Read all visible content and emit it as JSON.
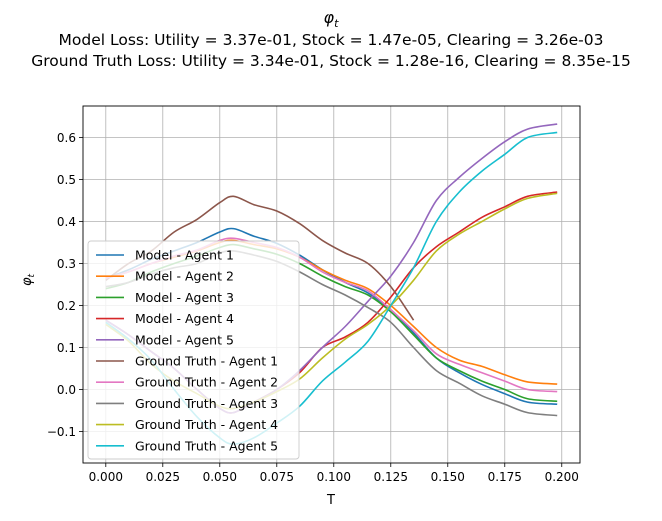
{
  "chart_data": {
    "type": "line",
    "title_symbol": "φ",
    "title_subscript": "t",
    "subtitle_lines": [
      "Model Loss: Utility = 3.37e-01, Stock = 1.47e-05, Clearing = 3.26e-03",
      "Ground Truth Loss: Utility = 3.34e-01, Stock = 1.28e-16, Clearing = 8.35e-15"
    ],
    "xlabel": "T",
    "ylabel_symbol": "φ",
    "ylabel_subscript": "t",
    "xlim": [
      -0.01,
      0.208
    ],
    "ylim": [
      -0.175,
      0.675
    ],
    "x_ticks": [
      0.0,
      0.025,
      0.05,
      0.075,
      0.1,
      0.125,
      0.15,
      0.175,
      0.2
    ],
    "x_tick_labels": [
      "0.000",
      "0.025",
      "0.050",
      "0.075",
      "0.100",
      "0.125",
      "0.150",
      "0.175",
      "0.200"
    ],
    "y_ticks": [
      -0.1,
      0.0,
      0.1,
      0.2,
      0.3,
      0.4,
      0.5,
      0.6
    ],
    "y_tick_labels": [
      "−0.1",
      "0.0",
      "0.1",
      "0.2",
      "0.3",
      "0.4",
      "0.5",
      "0.6"
    ],
    "grid": true,
    "legend_position": "lower-left",
    "series": [
      {
        "name": "Model - Agent 1",
        "color": "#1f77b4",
        "x": [
          0,
          0.01,
          0.02,
          0.03,
          0.04,
          0.05,
          0.056,
          0.065,
          0.075,
          0.085,
          0.095,
          0.105,
          0.115,
          0.125,
          0.135,
          0.145,
          0.155,
          0.165,
          0.175,
          0.185,
          0.198
        ],
        "y": [
          0.265,
          0.285,
          0.31,
          0.33,
          0.35,
          0.375,
          0.383,
          0.365,
          0.348,
          0.32,
          0.285,
          0.255,
          0.23,
          0.19,
          0.135,
          0.075,
          0.04,
          0.012,
          -0.01,
          -0.03,
          -0.035
        ]
      },
      {
        "name": "Model - Agent 2",
        "color": "#ff7f0e",
        "x": [
          0,
          0.01,
          0.02,
          0.03,
          0.04,
          0.05,
          0.056,
          0.065,
          0.075,
          0.085,
          0.095,
          0.105,
          0.115,
          0.125,
          0.135,
          0.145,
          0.155,
          0.165,
          0.175,
          0.185,
          0.198
        ],
        "y": [
          0.265,
          0.28,
          0.3,
          0.315,
          0.33,
          0.35,
          0.355,
          0.345,
          0.335,
          0.315,
          0.285,
          0.26,
          0.24,
          0.2,
          0.15,
          0.1,
          0.07,
          0.055,
          0.035,
          0.018,
          0.013
        ]
      },
      {
        "name": "Model - Agent 3",
        "color": "#2ca02c",
        "x": [
          0,
          0.01,
          0.02,
          0.03,
          0.04,
          0.05,
          0.056,
          0.065,
          0.075,
          0.085,
          0.095,
          0.105,
          0.115,
          0.125,
          0.135,
          0.145,
          0.155,
          0.165,
          0.175,
          0.185,
          0.198
        ],
        "y": [
          0.24,
          0.255,
          0.28,
          0.3,
          0.318,
          0.338,
          0.345,
          0.335,
          0.322,
          0.3,
          0.27,
          0.245,
          0.225,
          0.185,
          0.13,
          0.075,
          0.045,
          0.02,
          0.0,
          -0.022,
          -0.028
        ]
      },
      {
        "name": "Model - Agent 4",
        "color": "#d62728",
        "x": [
          0,
          0.01,
          0.02,
          0.03,
          0.04,
          0.05,
          0.056,
          0.065,
          0.075,
          0.085,
          0.095,
          0.105,
          0.115,
          0.125,
          0.135,
          0.145,
          0.155,
          0.165,
          0.175,
          0.185,
          0.198
        ],
        "y": [
          0.165,
          0.13,
          0.09,
          0.05,
          0.0,
          -0.045,
          -0.055,
          -0.03,
          0.0,
          0.04,
          0.1,
          0.125,
          0.16,
          0.22,
          0.29,
          0.34,
          0.375,
          0.41,
          0.435,
          0.46,
          0.47
        ]
      },
      {
        "name": "Model - Agent 5",
        "color": "#9467bd",
        "x": [
          0,
          0.01,
          0.02,
          0.03,
          0.04,
          0.05,
          0.056,
          0.065,
          0.075,
          0.085,
          0.095,
          0.105,
          0.115,
          0.125,
          0.135,
          0.145,
          0.155,
          0.165,
          0.175,
          0.185,
          0.198
        ],
        "y": [
          0.165,
          0.13,
          0.09,
          0.05,
          0.0,
          -0.045,
          -0.055,
          -0.03,
          0.0,
          0.045,
          0.1,
          0.15,
          0.21,
          0.27,
          0.35,
          0.45,
          0.505,
          0.55,
          0.59,
          0.62,
          0.632
        ]
      },
      {
        "name": "Ground Truth - Agent 1",
        "color": "#8c564b",
        "x": [
          0,
          0.01,
          0.02,
          0.03,
          0.04,
          0.05,
          0.056,
          0.065,
          0.075,
          0.085,
          0.095,
          0.105,
          0.115,
          0.125,
          0.135,
          0.145,
          0.155,
          0.165,
          0.175,
          0.185,
          0.198
        ],
        "y": [
          0.26,
          0.3,
          0.33,
          0.375,
          0.405,
          0.445,
          0.46,
          0.44,
          0.425,
          0.395,
          0.355,
          0.325,
          0.3,
          0.245,
          0.165,
          null,
          null,
          null,
          null,
          null,
          null
        ]
      },
      {
        "name": "Ground Truth - Agent 2",
        "color": "#e377c2",
        "x": [
          0,
          0.01,
          0.02,
          0.03,
          0.04,
          0.05,
          0.056,
          0.065,
          0.075,
          0.085,
          0.095,
          0.105,
          0.115,
          0.125,
          0.135,
          0.145,
          0.155,
          0.165,
          0.175,
          0.185,
          0.198
        ],
        "y": [
          0.265,
          0.28,
          0.3,
          0.318,
          0.332,
          0.355,
          0.36,
          0.35,
          0.338,
          0.315,
          0.28,
          0.255,
          0.235,
          0.19,
          0.14,
          0.085,
          0.06,
          0.04,
          0.02,
          0.0,
          -0.005
        ]
      },
      {
        "name": "Ground Truth - Agent 3",
        "color": "#7f7f7f",
        "x": [
          0,
          0.01,
          0.02,
          0.03,
          0.04,
          0.05,
          0.056,
          0.065,
          0.075,
          0.085,
          0.095,
          0.105,
          0.115,
          0.125,
          0.135,
          0.145,
          0.155,
          0.165,
          0.175,
          0.185,
          0.198
        ],
        "y": [
          0.245,
          0.255,
          0.275,
          0.29,
          0.3,
          0.325,
          0.33,
          0.32,
          0.305,
          0.28,
          0.25,
          0.225,
          0.195,
          0.16,
          0.1,
          0.045,
          0.015,
          -0.015,
          -0.035,
          -0.055,
          -0.062
        ]
      },
      {
        "name": "Ground Truth - Agent 4",
        "color": "#bcbd22",
        "x": [
          0,
          0.01,
          0.02,
          0.03,
          0.04,
          0.05,
          0.056,
          0.065,
          0.075,
          0.085,
          0.095,
          0.105,
          0.115,
          0.125,
          0.135,
          0.145,
          0.155,
          0.165,
          0.175,
          0.185,
          0.198
        ],
        "y": [
          0.155,
          0.115,
          0.06,
          0.02,
          -0.01,
          -0.04,
          -0.045,
          -0.03,
          -0.005,
          0.025,
          0.075,
          0.12,
          0.155,
          0.2,
          0.26,
          0.33,
          0.37,
          0.4,
          0.43,
          0.455,
          0.467
        ]
      },
      {
        "name": "Ground Truth - Agent 5",
        "color": "#17becf",
        "x": [
          0,
          0.01,
          0.02,
          0.03,
          0.04,
          0.05,
          0.056,
          0.065,
          0.075,
          0.085,
          0.095,
          0.105,
          0.115,
          0.125,
          0.135,
          0.145,
          0.155,
          0.165,
          0.175,
          0.185,
          0.198
        ],
        "y": [
          0.16,
          0.12,
          0.07,
          0.0,
          -0.065,
          -0.115,
          -0.13,
          -0.115,
          -0.08,
          -0.04,
          0.02,
          0.065,
          0.115,
          0.2,
          0.29,
          0.4,
          0.47,
          0.52,
          0.56,
          0.6,
          0.612
        ]
      }
    ]
  }
}
